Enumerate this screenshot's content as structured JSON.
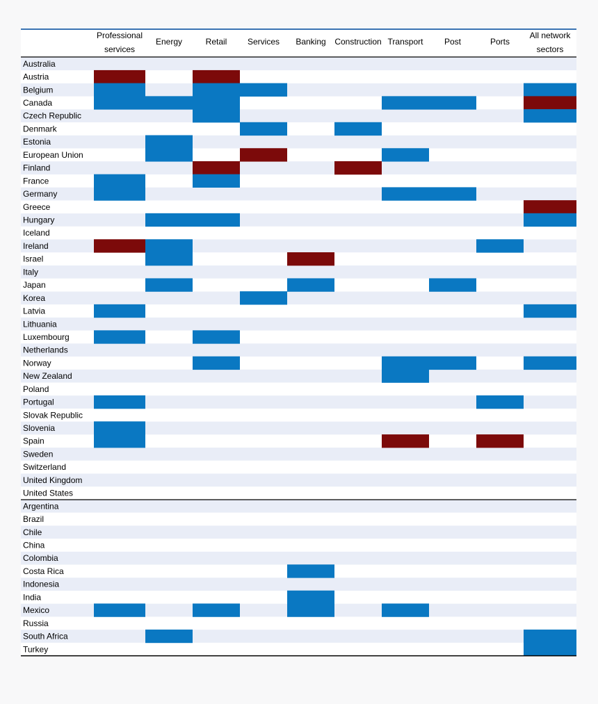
{
  "chart_data": {
    "type": "heatmap",
    "columns": [
      "Professional services",
      "Energy",
      "Retail",
      "Services",
      "Banking",
      "Construction",
      "Transport",
      "Post",
      "Ports",
      "All network sectors"
    ],
    "column_header_lines": [
      [
        "Professional",
        "services"
      ],
      [
        "Energy"
      ],
      [
        "Retail"
      ],
      [
        "Services"
      ],
      [
        "Banking"
      ],
      [
        "Construction"
      ],
      [
        "Transport"
      ],
      [
        "Post"
      ],
      [
        "Ports"
      ],
      [
        "All network",
        "sectors"
      ]
    ],
    "rows": [
      "Australia",
      "Austria",
      "Belgium",
      "Canada",
      "Czech Republic",
      "Denmark",
      "Estonia",
      "European Union",
      "Finland",
      "France",
      "Germany",
      "Greece",
      "Hungary",
      "Iceland",
      "Ireland",
      "Israel",
      "Italy",
      "Japan",
      "Korea",
      "Latvia",
      "Lithuania",
      "Luxembourg",
      "Netherlands",
      "Norway",
      "New Zealand",
      "Poland",
      "Portugal",
      "Slovak Republic",
      "Slovenia",
      "Spain",
      "Sweden",
      "Switzerland",
      "United Kingdom",
      "United States",
      "Argentina",
      "Brazil",
      "Chile",
      "China",
      "Colombia",
      "Costa Rica",
      "Indonesia",
      "India",
      "Mexico",
      "Russia",
      "South Africa",
      "Turkey"
    ],
    "group_divider_before": "Argentina",
    "cells": [
      [
        0,
        0,
        0,
        0,
        0,
        0,
        0,
        0,
        0,
        0
      ],
      [
        2,
        0,
        2,
        0,
        0,
        0,
        0,
        0,
        0,
        0
      ],
      [
        1,
        0,
        1,
        1,
        0,
        0,
        0,
        0,
        0,
        1
      ],
      [
        1,
        1,
        1,
        0,
        0,
        0,
        1,
        1,
        0,
        2
      ],
      [
        0,
        0,
        1,
        0,
        0,
        0,
        0,
        0,
        0,
        1
      ],
      [
        0,
        0,
        0,
        1,
        0,
        1,
        0,
        0,
        0,
        0
      ],
      [
        0,
        1,
        0,
        0,
        0,
        0,
        0,
        0,
        0,
        0
      ],
      [
        0,
        1,
        0,
        2,
        0,
        0,
        1,
        0,
        0,
        0
      ],
      [
        0,
        0,
        2,
        0,
        0,
        2,
        0,
        0,
        0,
        0
      ],
      [
        1,
        0,
        1,
        0,
        0,
        0,
        0,
        0,
        0,
        0
      ],
      [
        1,
        0,
        0,
        0,
        0,
        0,
        1,
        1,
        0,
        0
      ],
      [
        0,
        0,
        0,
        0,
        0,
        0,
        0,
        0,
        0,
        2
      ],
      [
        0,
        1,
        1,
        0,
        0,
        0,
        0,
        0,
        0,
        1
      ],
      [
        0,
        0,
        0,
        0,
        0,
        0,
        0,
        0,
        0,
        0
      ],
      [
        2,
        1,
        0,
        0,
        0,
        0,
        0,
        0,
        1,
        0
      ],
      [
        0,
        1,
        0,
        0,
        2,
        0,
        0,
        0,
        0,
        0
      ],
      [
        0,
        0,
        0,
        0,
        0,
        0,
        0,
        0,
        0,
        0
      ],
      [
        0,
        1,
        0,
        0,
        1,
        0,
        0,
        1,
        0,
        0
      ],
      [
        0,
        0,
        0,
        1,
        0,
        0,
        0,
        0,
        0,
        0
      ],
      [
        1,
        0,
        0,
        0,
        0,
        0,
        0,
        0,
        0,
        1
      ],
      [
        0,
        0,
        0,
        0,
        0,
        0,
        0,
        0,
        0,
        0
      ],
      [
        1,
        0,
        1,
        0,
        0,
        0,
        0,
        0,
        0,
        0
      ],
      [
        0,
        0,
        0,
        0,
        0,
        0,
        0,
        0,
        0,
        0
      ],
      [
        0,
        0,
        1,
        0,
        0,
        0,
        1,
        1,
        0,
        1
      ],
      [
        0,
        0,
        0,
        0,
        0,
        0,
        1,
        0,
        0,
        0
      ],
      [
        0,
        0,
        0,
        0,
        0,
        0,
        0,
        0,
        0,
        0
      ],
      [
        1,
        0,
        0,
        0,
        0,
        0,
        0,
        0,
        1,
        0
      ],
      [
        0,
        0,
        0,
        0,
        0,
        0,
        0,
        0,
        0,
        0
      ],
      [
        1,
        0,
        0,
        0,
        0,
        0,
        0,
        0,
        0,
        0
      ],
      [
        1,
        0,
        0,
        0,
        0,
        0,
        2,
        0,
        2,
        0
      ],
      [
        0,
        0,
        0,
        0,
        0,
        0,
        0,
        0,
        0,
        0
      ],
      [
        0,
        0,
        0,
        0,
        0,
        0,
        0,
        0,
        0,
        0
      ],
      [
        0,
        0,
        0,
        0,
        0,
        0,
        0,
        0,
        0,
        0
      ],
      [
        0,
        0,
        0,
        0,
        0,
        0,
        0,
        0,
        0,
        0
      ],
      [
        0,
        0,
        0,
        0,
        0,
        0,
        0,
        0,
        0,
        0
      ],
      [
        0,
        0,
        0,
        0,
        0,
        0,
        0,
        0,
        0,
        0
      ],
      [
        0,
        0,
        0,
        0,
        0,
        0,
        0,
        0,
        0,
        0
      ],
      [
        0,
        0,
        0,
        0,
        0,
        0,
        0,
        0,
        0,
        0
      ],
      [
        0,
        0,
        0,
        0,
        0,
        0,
        0,
        0,
        0,
        0
      ],
      [
        0,
        0,
        0,
        0,
        1,
        0,
        0,
        0,
        0,
        0
      ],
      [
        0,
        0,
        0,
        0,
        0,
        0,
        0,
        0,
        0,
        0
      ],
      [
        0,
        0,
        0,
        0,
        1,
        0,
        0,
        0,
        0,
        0
      ],
      [
        1,
        0,
        1,
        0,
        1,
        0,
        1,
        0,
        0,
        0
      ],
      [
        0,
        0,
        0,
        0,
        0,
        0,
        0,
        0,
        0,
        0
      ],
      [
        0,
        1,
        0,
        0,
        0,
        0,
        0,
        0,
        0,
        1
      ],
      [
        0,
        0,
        0,
        0,
        0,
        0,
        0,
        0,
        0,
        1
      ]
    ],
    "colors": {
      "1": "#0a78c2",
      "2": "#7c0a0a",
      "band_light": "#e9edf7",
      "band_white": "#ffffff",
      "rule_top": "#3a73b3",
      "rule": "#000000"
    }
  }
}
